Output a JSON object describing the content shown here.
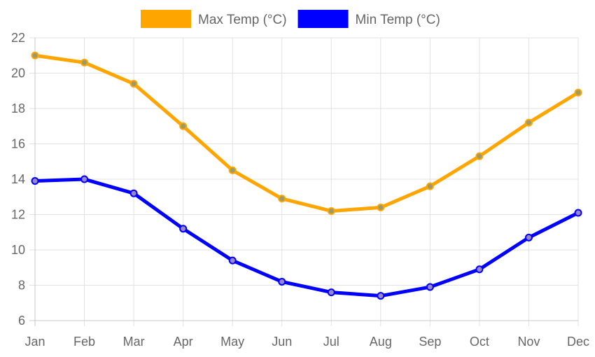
{
  "chart_data": {
    "type": "line",
    "categories": [
      "Jan",
      "Feb",
      "Mar",
      "Apr",
      "May",
      "Jun",
      "Jul",
      "Aug",
      "Sep",
      "Oct",
      "Nov",
      "Dec"
    ],
    "series": [
      {
        "name": "Max Temp (°C)",
        "color": "#ffa500",
        "point_color": "#9a9a6a",
        "values": [
          21.0,
          20.6,
          19.4,
          17.0,
          14.5,
          12.9,
          12.2,
          12.4,
          13.6,
          15.3,
          17.2,
          18.9
        ]
      },
      {
        "name": "Min Temp (°C)",
        "color": "#0000ff",
        "point_color": "#9a86c8",
        "values": [
          13.9,
          14.0,
          13.2,
          11.2,
          9.4,
          8.2,
          7.6,
          7.4,
          7.9,
          8.9,
          10.7,
          12.1
        ]
      }
    ],
    "title": "",
    "xlabel": "",
    "ylabel": "",
    "ylim": [
      6,
      22
    ],
    "yticks": [
      6,
      8,
      10,
      12,
      14,
      16,
      18,
      20,
      22
    ],
    "grid": true,
    "legend_position": "top-center"
  }
}
